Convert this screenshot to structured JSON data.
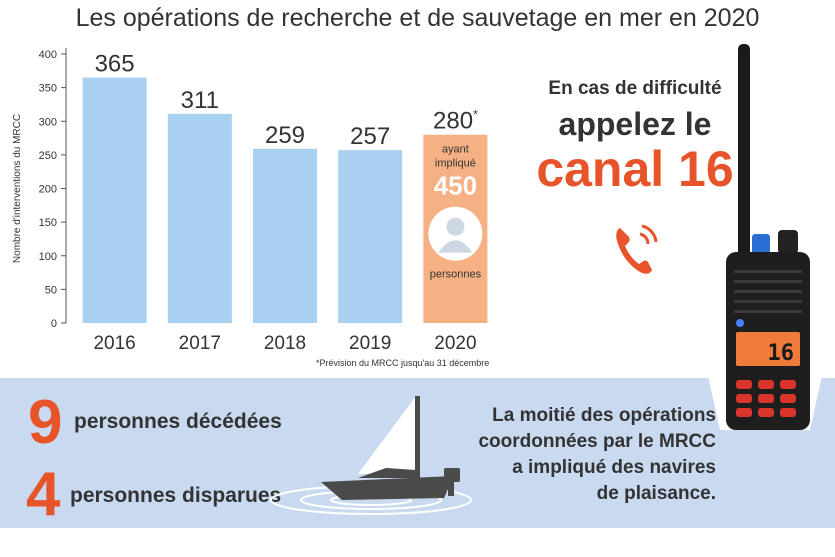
{
  "title": "Les opérations de recherche et de sauvetage en mer en 2020",
  "chart_data": {
    "type": "bar",
    "categories": [
      "2016",
      "2017",
      "2018",
      "2019",
      "2020"
    ],
    "values": [
      365,
      311,
      259,
      257,
      280
    ],
    "value_labels": [
      "365",
      "311",
      "259",
      "257",
      "280"
    ],
    "forecast_mark": "*",
    "ylabel": "Nombre d'interventions du MRCC",
    "ylim": [
      0,
      400
    ],
    "yticks": [
      0,
      50,
      100,
      150,
      200,
      250,
      300,
      350,
      400
    ],
    "bar_color": "#a8d0f0",
    "highlight_color": "#f5b183",
    "highlight_index": 4,
    "highlight_text": {
      "line1": "ayant",
      "line2": "impliqué",
      "number": "450",
      "line3": "personnes"
    },
    "footnote": "*Prévision du MRCC jusqu'au 31 décembre",
    "grid": false
  },
  "cta": {
    "line1": "En cas de difficulté",
    "line2": "appelez le",
    "line3": "canal 16"
  },
  "stats": [
    {
      "number": "9",
      "label": "personnes décédées"
    },
    {
      "number": "4",
      "label": "personnes disparues"
    }
  ],
  "moitie": [
    "La moitié des opérations",
    "coordonnées par le MRCC",
    "a impliqué des navires",
    "de plaisance."
  ],
  "radio_display": "16",
  "colors": {
    "accent": "#e8542a",
    "band": "#c9daf0",
    "text": "#333333"
  }
}
